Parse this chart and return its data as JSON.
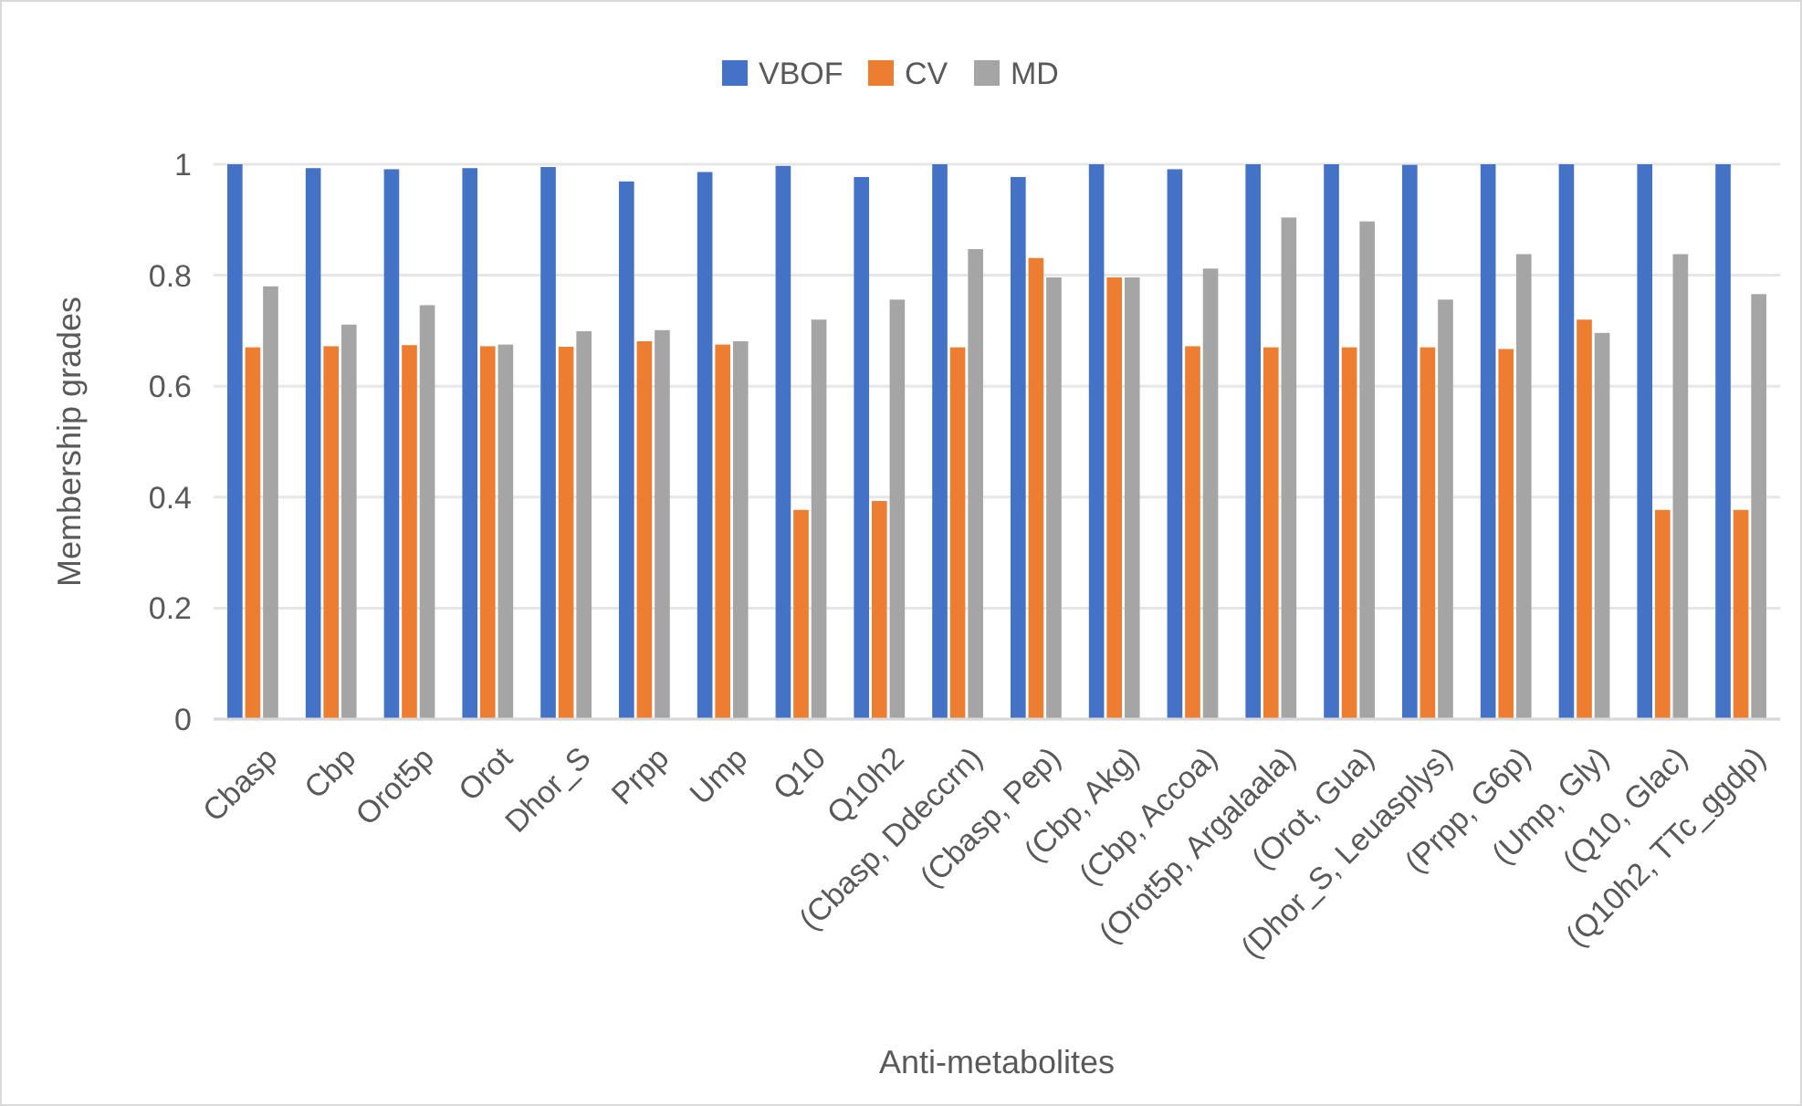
{
  "chart_data": {
    "type": "bar",
    "xlabel": "Anti-metabolites",
    "ylabel": "Membership grades",
    "categories": [
      "Cbasp",
      "Cbp",
      "Orot5p",
      "Orot",
      "Dhor_S",
      "Prpp",
      "Ump",
      "Q10",
      "Q10h2",
      "(Cbasp, Ddeccrn)",
      "(Cbasp, Pep)",
      "(Cbp, Akg)",
      "(Cbp, Accoa)",
      "(Orot5p, Argalaala)",
      "(Orot, Gua)",
      "(Dhor_S, Leuasplys)",
      "(Prpp, G6p)",
      "(Ump, Gly)",
      "(Q10, Glac)",
      "(Q10h2, TTc_ggdp)"
    ],
    "series": [
      {
        "name": "VBOF",
        "color": "#4472c4",
        "values": [
          1.0,
          0.993,
          0.991,
          0.993,
          0.995,
          0.969,
          0.986,
          0.997,
          0.977,
          1.0,
          0.977,
          1.0,
          0.991,
          1.0,
          1.0,
          0.999,
          1.0,
          1.0,
          1.0,
          1.0
        ]
      },
      {
        "name": "CV",
        "color": "#ed7d31",
        "values": [
          0.67,
          0.672,
          0.674,
          0.672,
          0.671,
          0.681,
          0.675,
          0.377,
          0.393,
          0.67,
          0.831,
          0.796,
          0.672,
          0.67,
          0.67,
          0.67,
          0.667,
          0.72,
          0.377,
          0.377
        ]
      },
      {
        "name": "MD",
        "color": "#a5a5a5",
        "values": [
          0.78,
          0.711,
          0.746,
          0.675,
          0.699,
          0.701,
          0.681,
          0.72,
          0.756,
          0.847,
          0.796,
          0.796,
          0.812,
          0.904,
          0.897,
          0.756,
          0.838,
          0.696,
          0.838,
          0.766
        ]
      }
    ],
    "ylim": [
      0,
      1
    ],
    "yticks": [
      0,
      0.2,
      0.4,
      0.6,
      0.8,
      1
    ],
    "grid": "y",
    "legend": "top"
  }
}
